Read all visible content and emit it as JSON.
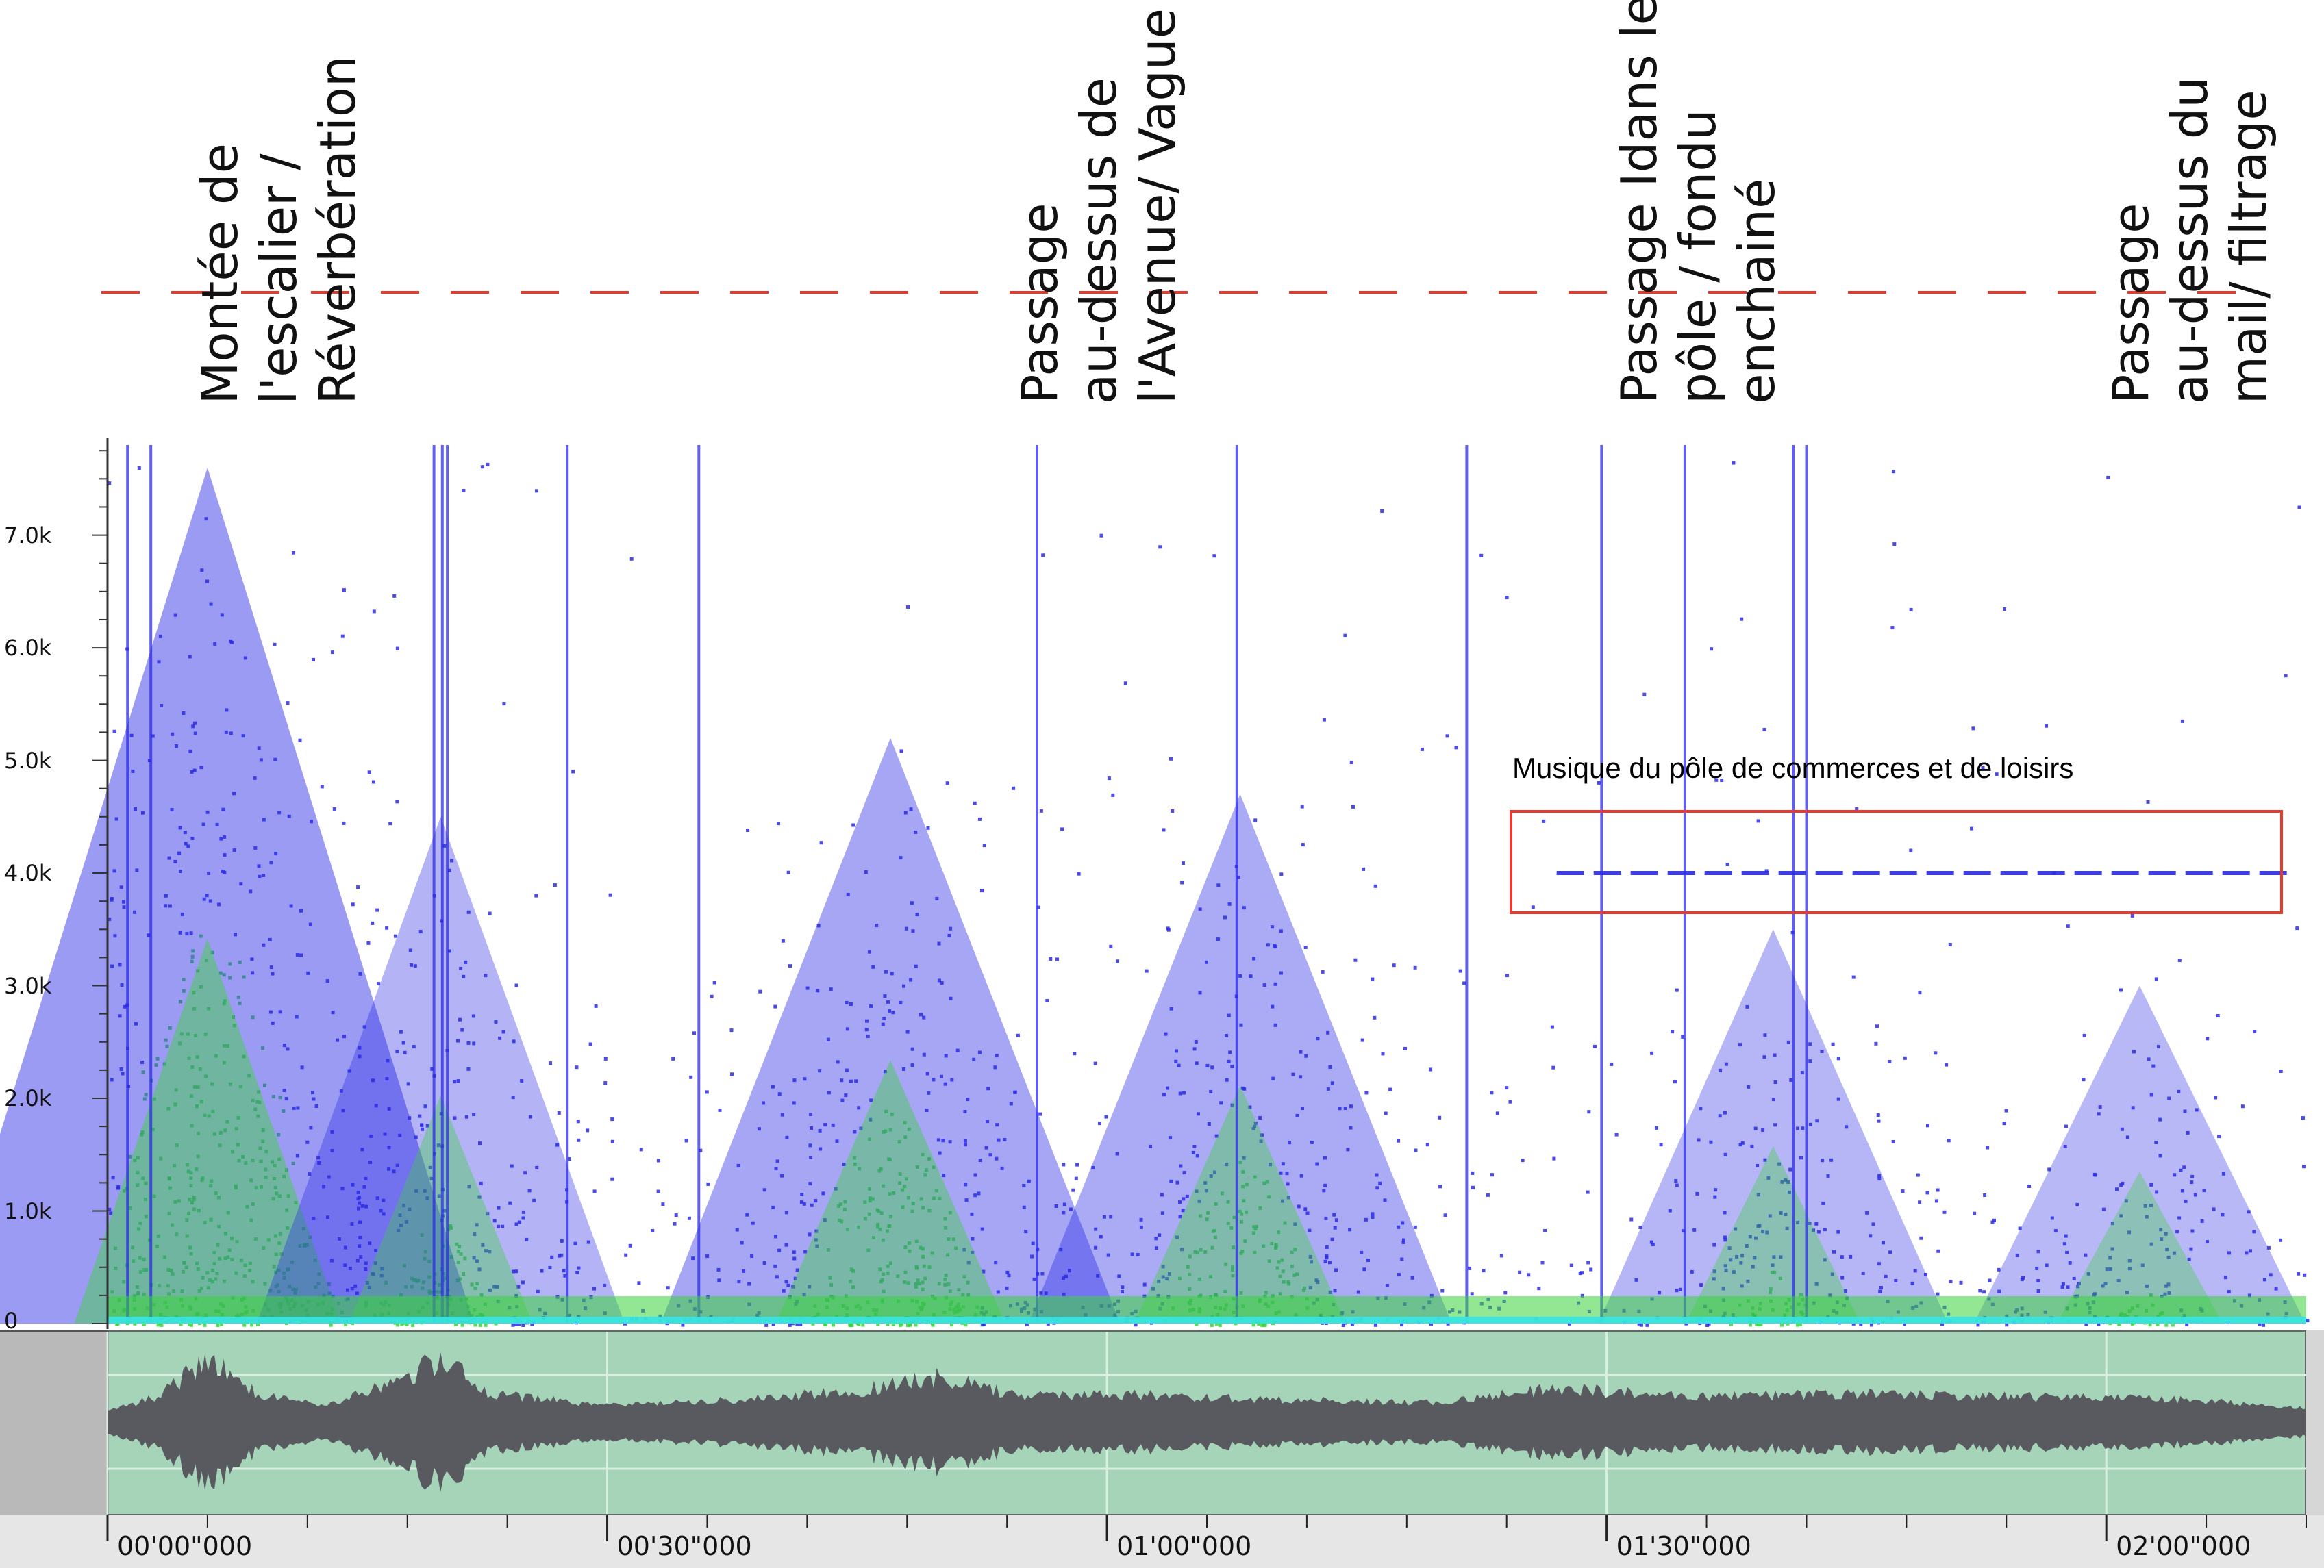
{
  "chart_data": {
    "type": "heatmap",
    "title": "",
    "xlabel": "",
    "ylabel": "",
    "x_unit": "time (mm'ss\"mmm)",
    "y_unit": "Hz",
    "xlim_seconds": [
      0,
      132
    ],
    "ylim_hz": [
      0,
      7800
    ],
    "y_ticks": [
      {
        "value": 0,
        "label": "0"
      },
      {
        "value": 1000,
        "label": "1.0k"
      },
      {
        "value": 2000,
        "label": "2.0k"
      },
      {
        "value": 3000,
        "label": "3.0k"
      },
      {
        "value": 4000,
        "label": "4.0k"
      },
      {
        "value": 5000,
        "label": "5.0k"
      },
      {
        "value": 6000,
        "label": "6.0k"
      },
      {
        "value": 7000,
        "label": "7.0k"
      }
    ],
    "x_ticks": [
      {
        "value": 0,
        "label": "00'00\"000"
      },
      {
        "value": 30,
        "label": "00'30\"000"
      },
      {
        "value": 60,
        "label": "01'00\"000"
      },
      {
        "value": 90,
        "label": "01'30\"000"
      },
      {
        "value": 120,
        "label": "02'00\"000"
      }
    ],
    "energy_bursts": [
      {
        "time": 6,
        "peak_freq_hz": 7600,
        "intensity": 1.0
      },
      {
        "time": 20,
        "peak_freq_hz": 4500,
        "intensity": 0.55
      },
      {
        "time": 47,
        "peak_freq_hz": 5200,
        "intensity": 0.8
      },
      {
        "time": 68,
        "peak_freq_hz": 4700,
        "intensity": 0.7
      },
      {
        "time": 100,
        "peak_freq_hz": 3500,
        "intensity": 0.5
      },
      {
        "time": 122,
        "peak_freq_hz": 3000,
        "intensity": 0.45
      }
    ],
    "vertical_lines_seconds": [
      1.2,
      2.6,
      19.6,
      20.1,
      20.4,
      27.6,
      35.5,
      55.8,
      67.8,
      81.6,
      89.7,
      94.7,
      101.2,
      102.0
    ],
    "music_band": {
      "freq_hz": 4000,
      "time_start": 87,
      "time_end": 131
    },
    "colors": {
      "low": "#2b2be6",
      "mid": "#3ad43a",
      "high": "#36e6e6",
      "annotation": "#e53b2c"
    }
  },
  "annotations": {
    "captions": [
      {
        "time": 10.3,
        "lines": [
          "Montée de",
          "l'escalier /",
          "Réverbération"
        ]
      },
      {
        "time": 59.5,
        "lines": [
          "Passage",
          "au-dessus de",
          "l'Avenue/ Vague"
        ]
      },
      {
        "time": 95.5,
        "lines": [
          "Passage Idans le",
          "pôle / fondu",
          "enchainé"
        ]
      },
      {
        "time": 125.0,
        "lines": [
          "Passage",
          "au-dessus du",
          "mail/ filtrage"
        ]
      }
    ],
    "music_label": "Musique du pôle de commerces et de loisirs"
  },
  "waveform": {
    "envelope": [
      {
        "time": 0,
        "amp": 0.05
      },
      {
        "time": 3,
        "amp": 0.3
      },
      {
        "time": 6,
        "amp": 0.95
      },
      {
        "time": 9,
        "amp": 0.35
      },
      {
        "time": 13,
        "amp": 0.15
      },
      {
        "time": 18,
        "amp": 0.6
      },
      {
        "time": 20,
        "amp": 1.0
      },
      {
        "time": 23,
        "amp": 0.35
      },
      {
        "time": 30,
        "amp": 0.15
      },
      {
        "time": 38,
        "amp": 0.25
      },
      {
        "time": 45,
        "amp": 0.4
      },
      {
        "time": 50,
        "amp": 0.65
      },
      {
        "time": 55,
        "amp": 0.3
      },
      {
        "time": 60,
        "amp": 0.35
      },
      {
        "time": 70,
        "amp": 0.25
      },
      {
        "time": 80,
        "amp": 0.2
      },
      {
        "time": 87,
        "amp": 0.45
      },
      {
        "time": 95,
        "amp": 0.3
      },
      {
        "time": 105,
        "amp": 0.35
      },
      {
        "time": 115,
        "amp": 0.3
      },
      {
        "time": 125,
        "amp": 0.25
      },
      {
        "time": 132,
        "amp": 0.1
      }
    ]
  }
}
